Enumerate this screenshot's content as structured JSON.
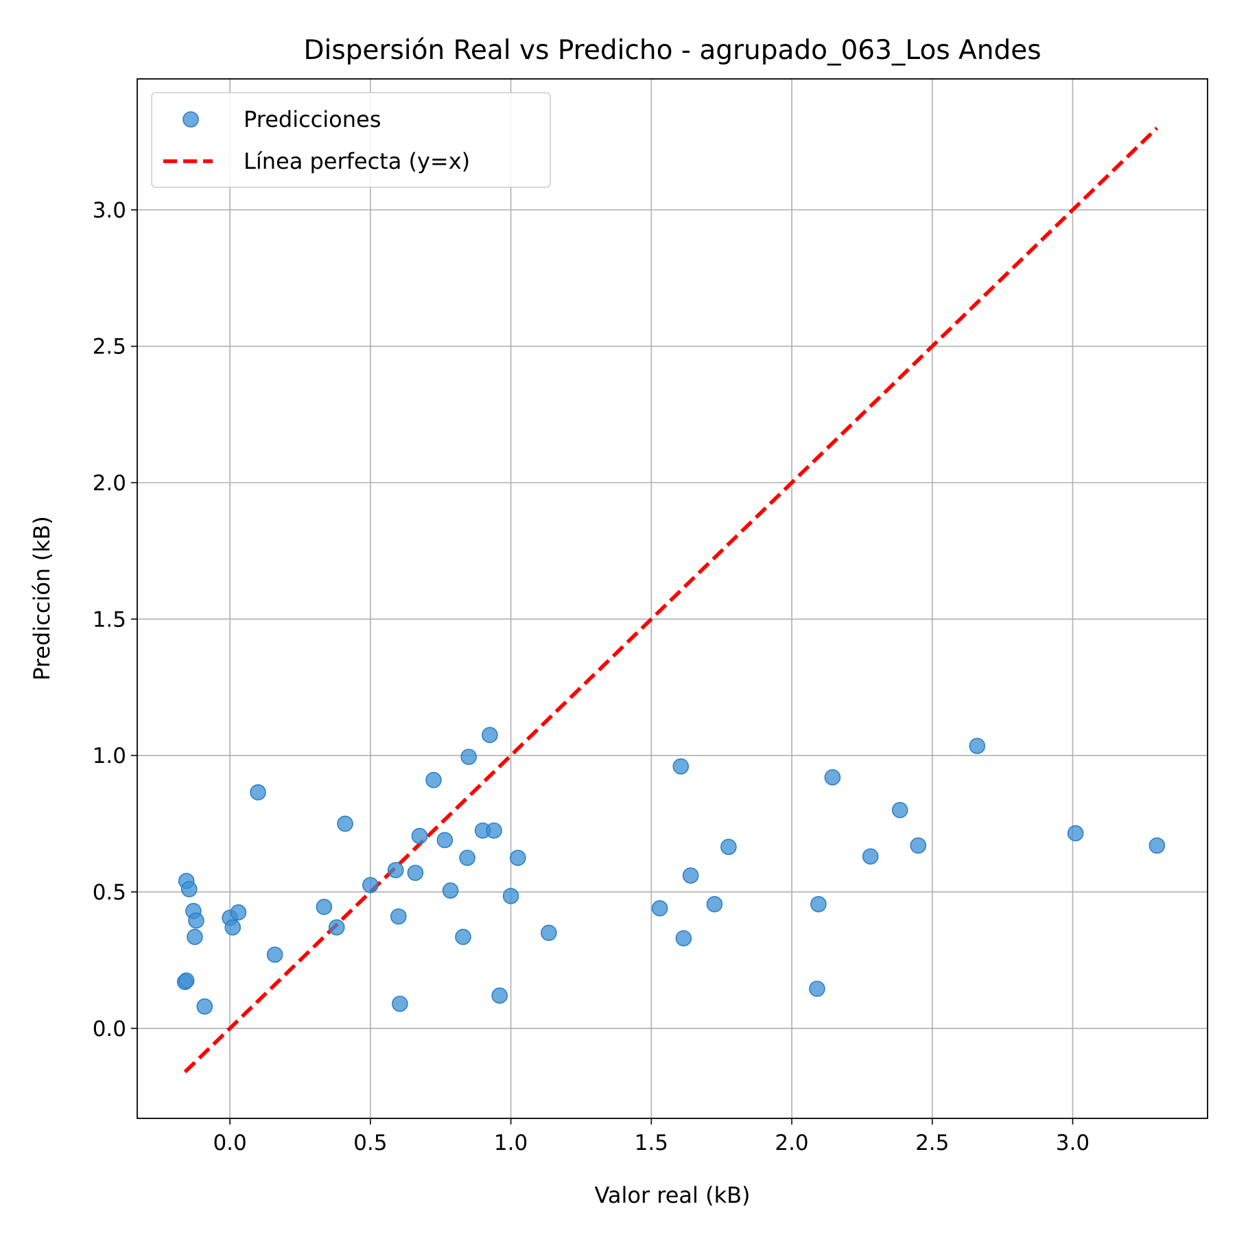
{
  "chart_data": {
    "type": "scatter",
    "title": "Dispersión Real vs Predicho - agrupado_063_Los Andes",
    "xlabel": "Valor real (kB)",
    "ylabel": "Predicción (kB)",
    "xlim": [
      -0.33,
      3.48
    ],
    "ylim": [
      -0.33,
      3.48
    ],
    "x_ticks": [
      "0.0",
      "0.5",
      "1.0",
      "1.5",
      "2.0",
      "2.5",
      "3.0"
    ],
    "y_ticks": [
      "0.0",
      "0.5",
      "1.0",
      "1.5",
      "2.0",
      "2.5",
      "3.0"
    ],
    "grid": true,
    "legend_position": "top-left",
    "series": [
      {
        "name": "Predicciones",
        "kind": "scatter",
        "color": "#3a8fd6",
        "points": [
          [
            -0.155,
            0.54
          ],
          [
            -0.145,
            0.51
          ],
          [
            -0.13,
            0.43
          ],
          [
            -0.12,
            0.395
          ],
          [
            -0.125,
            0.335
          ],
          [
            -0.16,
            0.17
          ],
          [
            -0.155,
            0.175
          ],
          [
            -0.09,
            0.08
          ],
          [
            0.0,
            0.405
          ],
          [
            0.01,
            0.37
          ],
          [
            0.03,
            0.425
          ],
          [
            0.1,
            0.865
          ],
          [
            0.16,
            0.27
          ],
          [
            0.335,
            0.445
          ],
          [
            0.38,
            0.37
          ],
          [
            0.41,
            0.75
          ],
          [
            0.5,
            0.525
          ],
          [
            0.59,
            0.58
          ],
          [
            0.6,
            0.41
          ],
          [
            0.605,
            0.09
          ],
          [
            0.66,
            0.57
          ],
          [
            0.675,
            0.705
          ],
          [
            0.725,
            0.91
          ],
          [
            0.765,
            0.69
          ],
          [
            0.785,
            0.505
          ],
          [
            0.83,
            0.335
          ],
          [
            0.845,
            0.625
          ],
          [
            0.85,
            0.995
          ],
          [
            0.9,
            0.725
          ],
          [
            0.925,
            1.075
          ],
          [
            0.94,
            0.725
          ],
          [
            0.96,
            0.12
          ],
          [
            1.0,
            0.485
          ],
          [
            1.025,
            0.625
          ],
          [
            1.135,
            0.35
          ],
          [
            1.53,
            0.44
          ],
          [
            1.605,
            0.96
          ],
          [
            1.615,
            0.33
          ],
          [
            1.64,
            0.56
          ],
          [
            1.725,
            0.455
          ],
          [
            1.775,
            0.665
          ],
          [
            2.09,
            0.145
          ],
          [
            2.095,
            0.455
          ],
          [
            2.145,
            0.92
          ],
          [
            2.28,
            0.63
          ],
          [
            2.385,
            0.8
          ],
          [
            2.45,
            0.67
          ],
          [
            2.66,
            1.035
          ],
          [
            3.01,
            0.715
          ],
          [
            3.3,
            0.67
          ]
        ]
      },
      {
        "name": "Línea perfecta (y=x)",
        "kind": "line",
        "style": "dashed",
        "color": "#ff0000",
        "points": [
          [
            -0.16,
            -0.16
          ],
          [
            3.3,
            3.3
          ]
        ]
      }
    ]
  }
}
